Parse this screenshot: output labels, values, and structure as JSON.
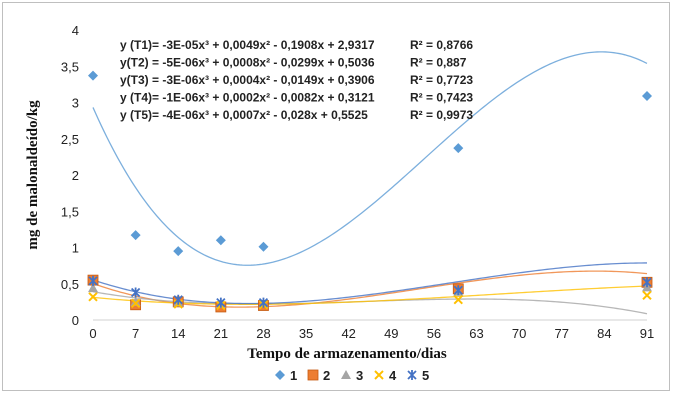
{
  "chart_data": {
    "type": "scatter",
    "title": "",
    "xlabel": "Tempo de armazenamento/dias",
    "ylabel": "mg de malonaldeído/kg",
    "xlim": [
      0,
      91
    ],
    "ylim": [
      0,
      4
    ],
    "x_ticks": [
      "0",
      "7",
      "14",
      "21",
      "28",
      "35",
      "42",
      "49",
      "56",
      "63",
      "70",
      "77",
      "84",
      "91"
    ],
    "y_ticks": [
      "0",
      "0,5",
      "1",
      "1,5",
      "2",
      "2,5",
      "3",
      "3,5",
      "4"
    ],
    "grid": false,
    "legend_position": "bottom",
    "trendline": "polynomial-3",
    "series": [
      {
        "name": "1",
        "color": "#5b9bd5",
        "marker": "diamond",
        "x": [
          0,
          7,
          14,
          21,
          28,
          60,
          91
        ],
        "y": [
          3.37,
          1.17,
          0.95,
          1.1,
          1.01,
          2.37,
          3.09
        ],
        "coef": [
          -3e-05,
          0.0049,
          -0.1908,
          2.9317
        ]
      },
      {
        "name": "2",
        "color": "#ed7d31",
        "marker": "square",
        "x": [
          0,
          7,
          14,
          21,
          28,
          60,
          91
        ],
        "y": [
          0.55,
          0.21,
          0.25,
          0.18,
          0.2,
          0.43,
          0.52
        ],
        "coef": [
          -5e-06,
          0.0008,
          -0.0299,
          0.5036
        ]
      },
      {
        "name": "3",
        "color": "#a5a5a5",
        "marker": "triangle",
        "x": [
          0,
          7,
          14,
          21,
          28,
          60,
          91
        ],
        "y": [
          0.44,
          0.25,
          0.24,
          0.22,
          0.23,
          0.39,
          0.45
        ],
        "coef": [
          -3e-06,
          0.0004,
          -0.0149,
          0.3906
        ]
      },
      {
        "name": "4",
        "color": "#ffc000",
        "marker": "x",
        "x": [
          0,
          7,
          14,
          21,
          28,
          60,
          91
        ],
        "y": [
          0.32,
          0.23,
          0.22,
          0.2,
          0.21,
          0.28,
          0.34
        ],
        "coef": [
          -1e-06,
          0.0002,
          -0.0082,
          0.3121
        ]
      },
      {
        "name": "5",
        "color": "#4472c4",
        "marker": "star",
        "x": [
          0,
          7,
          14,
          21,
          28,
          60,
          91
        ],
        "y": [
          0.54,
          0.38,
          0.28,
          0.24,
          0.24,
          0.41,
          0.52
        ],
        "coef": [
          -4e-06,
          0.0007,
          -0.028,
          0.5525
        ]
      }
    ],
    "equations": [
      {
        "eq": "y (T1)= -3E-05x³ + 0,0049x² - 0,1908x + 2,9317",
        "r2": "R² = 0,8766"
      },
      {
        "eq": "y(T2) = -5E-06x³ + 0,0008x² - 0,0299x + 0,5036",
        "r2": "R² = 0,887"
      },
      {
        "eq": "y(T3) = -3E-06x³ + 0,0004x² - 0,0149x + 0,3906",
        "r2": "R² = 0,7723"
      },
      {
        "eq": "y (T4)= -1E-06x³ + 0,0002x² - 0,0082x + 0,3121",
        "r2": "R² = 0,7423"
      },
      {
        "eq": "y (T5)= -4E-06x³ + 0,0007x² - 0,028x + 0,5525",
        "r2": "R² = 0,9973"
      }
    ]
  }
}
